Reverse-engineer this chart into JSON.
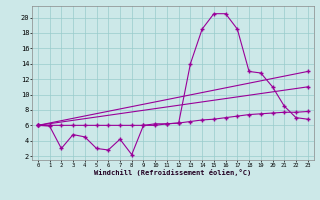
{
  "background_color": "#cce8e8",
  "grid_color": "#99cccc",
  "line_color": "#990099",
  "xlabel": "Windchill (Refroidissement éolien,°C)",
  "xlim": [
    -0.5,
    23.5
  ],
  "ylim": [
    1.5,
    21.5
  ],
  "xticks": [
    0,
    1,
    2,
    3,
    4,
    5,
    6,
    7,
    8,
    9,
    10,
    11,
    12,
    13,
    14,
    15,
    16,
    17,
    18,
    19,
    20,
    21,
    22,
    23
  ],
  "yticks": [
    2,
    4,
    6,
    8,
    10,
    12,
    14,
    16,
    18,
    20
  ],
  "line1_x": [
    0,
    1,
    2,
    3,
    4,
    5,
    6,
    7,
    8,
    9,
    10,
    11,
    12,
    13,
    14,
    15,
    16,
    17,
    18,
    19,
    20,
    21,
    22,
    23
  ],
  "line1_y": [
    6.0,
    5.9,
    3.0,
    4.8,
    4.5,
    3.0,
    2.8,
    4.2,
    2.2,
    6.0,
    6.2,
    6.2,
    6.3,
    14.0,
    18.5,
    20.5,
    20.5,
    18.5,
    13.0,
    12.8,
    11.0,
    8.5,
    7.0,
    6.8
  ],
  "line2_x": [
    0,
    1,
    2,
    3,
    4,
    5,
    6,
    7,
    8,
    9,
    10,
    11,
    12,
    13,
    14,
    15,
    16,
    17,
    18,
    19,
    20,
    21,
    22,
    23
  ],
  "line2_y": [
    6.0,
    6.0,
    6.0,
    6.0,
    6.0,
    6.0,
    6.0,
    6.0,
    6.0,
    6.0,
    6.0,
    6.2,
    6.3,
    6.5,
    6.7,
    6.8,
    7.0,
    7.2,
    7.4,
    7.5,
    7.6,
    7.7,
    7.7,
    7.8
  ],
  "line3_x": [
    0,
    23
  ],
  "line3_y": [
    6.0,
    13.0
  ],
  "line4_x": [
    0,
    23
  ],
  "line4_y": [
    6.0,
    11.0
  ]
}
